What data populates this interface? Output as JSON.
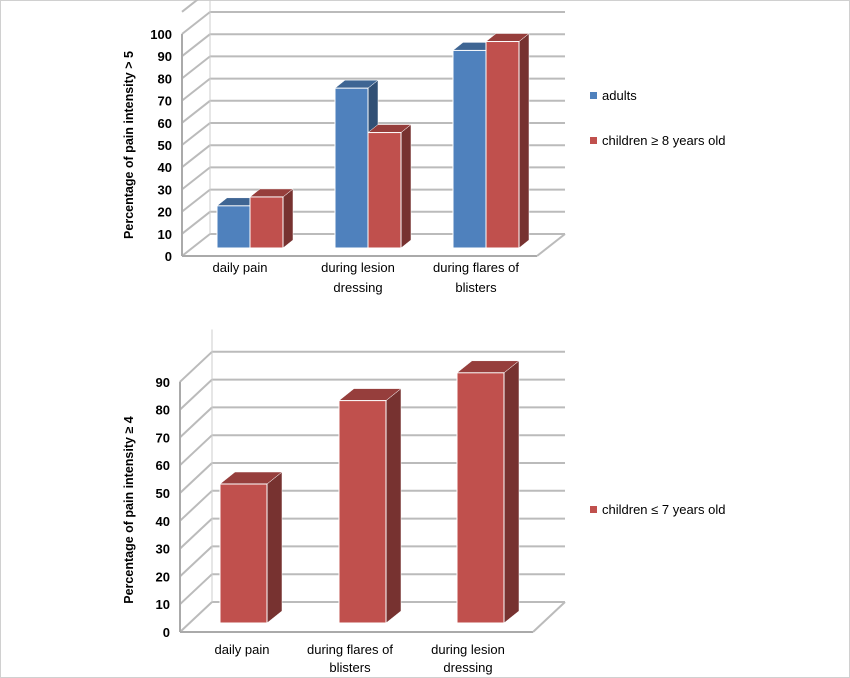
{
  "chart_data": [
    {
      "type": "bar",
      "style": "3d-clustered-column",
      "ylabel": "Percentage of pain intensity > 5",
      "ylim": [
        0,
        100
      ],
      "yticks": [
        0,
        10,
        20,
        30,
        40,
        50,
        60,
        70,
        80,
        90,
        100
      ],
      "categories": [
        [
          "daily  pain"
        ],
        [
          "during lesion",
          "dressing"
        ],
        [
          "during flares of",
          "blisters"
        ]
      ],
      "series": [
        {
          "name": "adults",
          "color": "#4f81bd",
          "values": [
            19,
            72,
            89
          ]
        },
        {
          "name": "children ≥ 8 years old",
          "color": "#c0504d",
          "values": [
            23,
            52,
            93
          ]
        }
      ],
      "grid": true,
      "legend": "right"
    },
    {
      "type": "bar",
      "style": "3d-column",
      "ylabel": "Percentage of pain intensity ≥ 4",
      "ylim": [
        0,
        90
      ],
      "yticks": [
        0,
        10,
        20,
        30,
        40,
        50,
        60,
        70,
        80,
        90
      ],
      "categories": [
        [
          "daily pain"
        ],
        [
          "during flares of",
          "blisters"
        ],
        [
          "during lesion",
          "dressing"
        ]
      ],
      "series": [
        {
          "name": "children ≤ 7 years old",
          "color": "#c0504d",
          "values": [
            50,
            80,
            90
          ]
        }
      ],
      "grid": true,
      "legend": "right"
    }
  ]
}
